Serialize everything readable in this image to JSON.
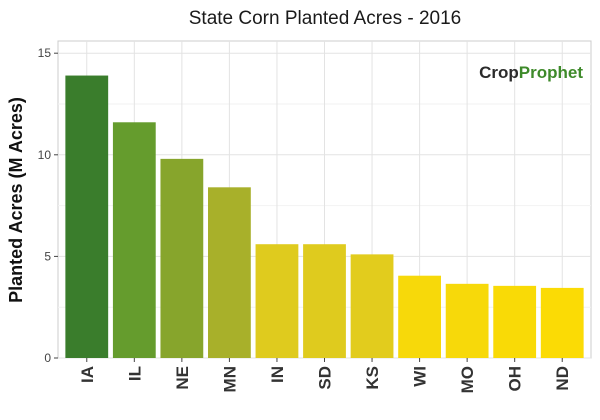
{
  "chart_data": {
    "type": "bar",
    "title": "State Corn Planted Acres - 2016",
    "xlabel": "",
    "ylabel": "Planted Acres (M Acres)",
    "categories": [
      "IA",
      "IL",
      "NE",
      "MN",
      "IN",
      "SD",
      "KS",
      "WI",
      "MO",
      "OH",
      "ND"
    ],
    "values": [
      13.9,
      11.6,
      9.8,
      8.4,
      5.6,
      5.6,
      5.1,
      4.05,
      3.65,
      3.55,
      3.45
    ],
    "colors": [
      "#3a7d2c",
      "#659c2d",
      "#87a52c",
      "#a8b02a",
      "#dfcb1e",
      "#dfcb1e",
      "#e2cc1d",
      "#f7d90a",
      "#f7d90a",
      "#f9da06",
      "#fbdb05"
    ],
    "ylim": [
      0,
      15.6
    ],
    "yticks": [
      0,
      5,
      10,
      15
    ],
    "grid": true,
    "legend": "none"
  },
  "watermark": {
    "part1": "Crop",
    "part2": "Prophet"
  }
}
